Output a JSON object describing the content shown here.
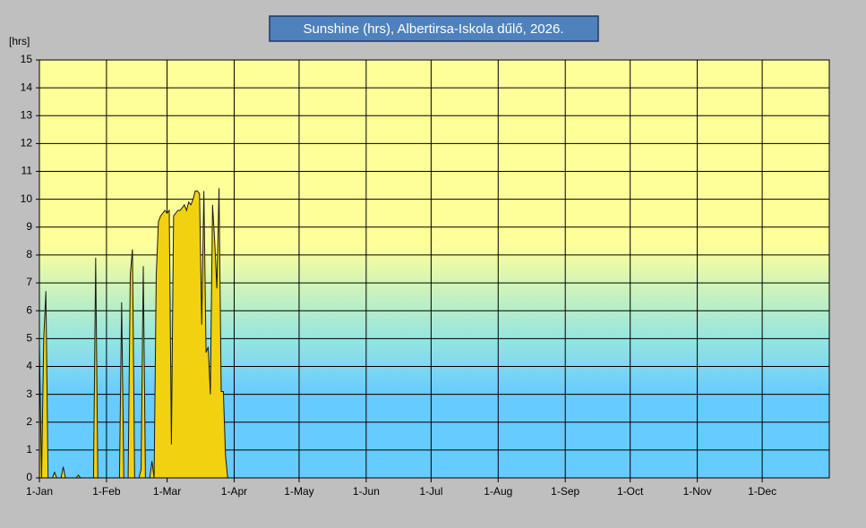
{
  "chart_data": {
    "type": "area",
    "title": "Sunshine (hrs), Albertirsa-Iskola dűlő, 2026.",
    "y_label": "[hrs]",
    "color": "#f2d210",
    "line_color": "#1a1a1a",
    "grid": true,
    "xlim": [
      0,
      365
    ],
    "ylim": [
      0,
      15
    ],
    "yticks": [
      0,
      1,
      2,
      3,
      4,
      5,
      6,
      7,
      8,
      9,
      10,
      11,
      12,
      13,
      14,
      15
    ],
    "xticks": [
      {
        "value": 0,
        "label": "1-Jan"
      },
      {
        "value": 31,
        "label": "1-Feb"
      },
      {
        "value": 59,
        "label": "1-Mar"
      },
      {
        "value": 90,
        "label": "1-Apr"
      },
      {
        "value": 120,
        "label": "1-May"
      },
      {
        "value": 151,
        "label": "1-Jun"
      },
      {
        "value": 181,
        "label": "1-Jul"
      },
      {
        "value": 212,
        "label": "1-Aug"
      },
      {
        "value": 243,
        "label": "1-Sep"
      },
      {
        "value": 273,
        "label": "1-Oct"
      },
      {
        "value": 304,
        "label": "1-Nov"
      },
      {
        "value": 334,
        "label": "1-Dec"
      }
    ],
    "x": [
      0,
      1,
      2,
      3,
      4,
      5,
      6,
      7,
      8,
      9,
      10,
      11,
      12,
      13,
      14,
      15,
      16,
      17,
      18,
      19,
      20,
      21,
      22,
      23,
      24,
      25,
      26,
      27,
      28,
      29,
      30,
      31,
      32,
      33,
      34,
      35,
      36,
      37,
      38,
      39,
      40,
      41,
      42,
      43,
      44,
      45,
      46,
      47,
      48,
      49,
      50,
      51,
      52,
      53,
      54,
      55,
      56,
      57,
      58,
      59,
      60,
      61,
      62,
      63,
      64,
      65,
      66,
      67,
      68,
      69,
      70,
      71,
      72,
      73,
      74,
      75,
      76,
      77,
      78,
      79,
      80,
      81,
      82,
      83,
      84,
      85,
      86,
      87
    ],
    "values": [
      4.7,
      0,
      5.0,
      6.7,
      0,
      0,
      0,
      0.2,
      0,
      0,
      0,
      0.4,
      0,
      0,
      0,
      0,
      0,
      0,
      0.1,
      0,
      0,
      0,
      0,
      0,
      0,
      0,
      7.9,
      0,
      0,
      0,
      0,
      0,
      0,
      0,
      0,
      0,
      0,
      0,
      6.3,
      0,
      0,
      0,
      7.3,
      8.2,
      0,
      0,
      0,
      0.3,
      7.6,
      0,
      0,
      0,
      0.6,
      0,
      7.3,
      9.2,
      9.4,
      9.5,
      9.6,
      9.5,
      9.6,
      1.2,
      9.4,
      9.5,
      9.6,
      9.6,
      9.7,
      9.8,
      9.6,
      9.9,
      9.8,
      10.0,
      10.3,
      10.3,
      10.2,
      5.5,
      10.3,
      4.5,
      4.7,
      3.0,
      9.8,
      8.5,
      6.8,
      10.4,
      3.1,
      3.1,
      0.8,
      0
    ]
  }
}
